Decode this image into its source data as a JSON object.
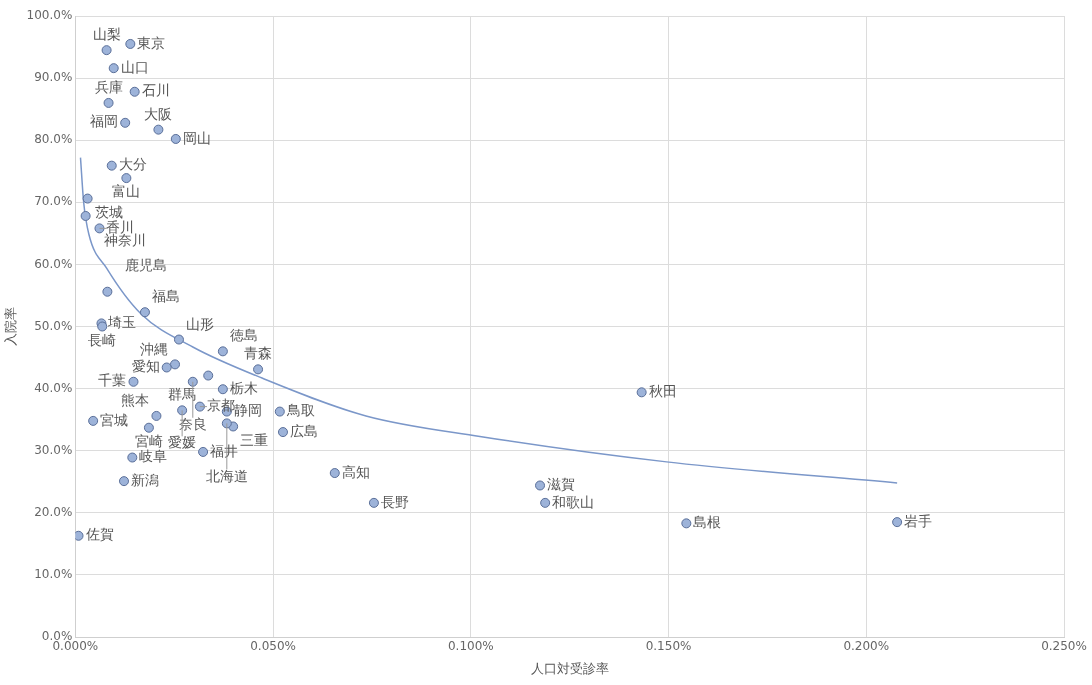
{
  "chart_data": {
    "type": "scatter",
    "xlabel": "人口対受診率",
    "ylabel": "入院率",
    "xlim": [
      0,
      0.25
    ],
    "xticks": [
      {
        "value": 0,
        "label": "0.000%"
      },
      {
        "value": 0.05,
        "label": "0.050%"
      },
      {
        "value": 0.1,
        "label": "0.100%"
      },
      {
        "value": 0.15,
        "label": "0.150%"
      },
      {
        "value": 0.2,
        "label": "0.200%"
      },
      {
        "value": 0.25,
        "label": "0.250%"
      }
    ],
    "ylim": [
      0,
      100
    ],
    "yticks": [
      {
        "value": 0,
        "label": "0.0%"
      },
      {
        "value": 10,
        "label": "10.0%"
      },
      {
        "value": 20,
        "label": "20.0%"
      },
      {
        "value": 30,
        "label": "30.0%"
      },
      {
        "value": 40,
        "label": "40.0%"
      },
      {
        "value": 50,
        "label": "50.0%"
      },
      {
        "value": 60,
        "label": "60.0%"
      },
      {
        "value": 70,
        "label": "70.0%"
      },
      {
        "value": 80,
        "label": "80.0%"
      },
      {
        "value": 90,
        "label": "90.0%"
      },
      {
        "value": 100,
        "label": "100.0%"
      }
    ],
    "grid": true,
    "legend": false,
    "series": [
      {
        "marker": "circle",
        "color": "#9db3d9",
        "x": [
          0.0139,
          0.0079,
          0.0097,
          0.015,
          0.0084,
          0.0126,
          0.021,
          0.0254,
          0.0092,
          0.0129,
          0.0031,
          0.0026,
          0.0061,
          0.0081,
          0.0176,
          0.0066,
          0.0068,
          0.0262,
          0.0252,
          0.0373,
          0.0231,
          0.0462,
          0.0336,
          0.0147,
          0.0297,
          0.0373,
          0.0383,
          0.0045,
          0.0205,
          0.0186,
          0.027,
          0.0315,
          0.0323,
          0.0399,
          0.0383,
          0.0517,
          0.0525,
          0.0656,
          0.0144,
          0.0123,
          0.0755,
          0.1175,
          0.1188,
          0.1432,
          0.1545,
          0.2078,
          0.0008
        ],
        "values": [
          95.5,
          94.5,
          91.6,
          87.8,
          86.0,
          82.8,
          81.7,
          80.2,
          75.9,
          73.9,
          70.6,
          67.8,
          65.8,
          55.6,
          52.3,
          50.5,
          50.0,
          47.9,
          43.9,
          46.0,
          43.4,
          43.1,
          42.1,
          41.1,
          41.1,
          39.9,
          36.3,
          34.8,
          35.6,
          33.7,
          36.5,
          37.1,
          29.8,
          33.9,
          34.4,
          36.3,
          33.0,
          26.4,
          28.9,
          25.1,
          21.6,
          24.4,
          21.6,
          39.4,
          18.3,
          18.5,
          16.3
        ]
      },
      {
        "type": "line",
        "color": "#7b97c9",
        "x": [
          0.0013,
          0.0021,
          0.0034,
          0.0079,
          0.0165,
          0.0297,
          0.0472,
          0.0735,
          0.1023,
          0.1495,
          0.2078
        ],
        "values": [
          77.2,
          70.0,
          64.9,
          59.4,
          52.1,
          46.7,
          41.7,
          35.6,
          32.3,
          28.2,
          24.8
        ]
      }
    ],
    "annotations": [
      {
        "text": "東京",
        "x": 0.0139,
        "y": 95.5
      },
      {
        "text": "山梨",
        "x": 0.0079,
        "y": 94.5
      },
      {
        "text": "山口",
        "x": 0.0097,
        "y": 91.6
      },
      {
        "text": "石川",
        "x": 0.015,
        "y": 87.8
      },
      {
        "text": "兵庫",
        "x": 0.0084,
        "y": 86.0
      },
      {
        "text": "福岡",
        "x": 0.0126,
        "y": 82.8
      },
      {
        "text": "大阪",
        "x": 0.021,
        "y": 81.7
      },
      {
        "text": "岡山",
        "x": 0.0254,
        "y": 80.2
      },
      {
        "text": "大分",
        "x": 0.0092,
        "y": 75.9
      },
      {
        "text": "富山",
        "x": 0.0129,
        "y": 73.9
      },
      {
        "text": "茨城",
        "x": 0.0031,
        "y": 70.6
      },
      {
        "text": "神奈川",
        "x": 0.0026,
        "y": 67.8
      },
      {
        "text": "香川",
        "x": 0.0061,
        "y": 65.8
      },
      {
        "text": "鹿児島",
        "x": 0.0081,
        "y": 55.6
      },
      {
        "text": "福島",
        "x": 0.0176,
        "y": 52.3
      },
      {
        "text": "埼玉",
        "x": 0.0066,
        "y": 50.5
      },
      {
        "text": "長崎",
        "x": 0.0068,
        "y": 50.0
      },
      {
        "text": "山形",
        "x": 0.0262,
        "y": 47.9
      },
      {
        "text": "沖縄",
        "x": 0.0252,
        "y": 43.9
      },
      {
        "text": "徳島",
        "x": 0.0373,
        "y": 46.0
      },
      {
        "text": "愛知",
        "x": 0.0231,
        "y": 43.4
      },
      {
        "text": "青森",
        "x": 0.0462,
        "y": 43.1
      },
      {
        "text": "群馬",
        "x": 0.0336,
        "y": 42.1
      },
      {
        "text": "千葉",
        "x": 0.0147,
        "y": 41.1
      },
      {
        "text": "奈良",
        "x": 0.0297,
        "y": 41.1
      },
      {
        "text": "栃木",
        "x": 0.0373,
        "y": 39.9
      },
      {
        "text": "静岡",
        "x": 0.0383,
        "y": 36.3
      },
      {
        "text": "宮城",
        "x": 0.0045,
        "y": 34.8
      },
      {
        "text": "熊本",
        "x": 0.0205,
        "y": 35.6
      },
      {
        "text": "宮崎",
        "x": 0.0186,
        "y": 33.7
      },
      {
        "text": "愛媛",
        "x": 0.027,
        "y": 36.5
      },
      {
        "text": "京都",
        "x": 0.0315,
        "y": 37.1
      },
      {
        "text": "福井",
        "x": 0.0323,
        "y": 29.8
      },
      {
        "text": "三重",
        "x": 0.0399,
        "y": 33.9
      },
      {
        "text": "北海道",
        "x": 0.0383,
        "y": 34.4
      },
      {
        "text": "鳥取",
        "x": 0.0517,
        "y": 36.3
      },
      {
        "text": "広島",
        "x": 0.0525,
        "y": 33.0
      },
      {
        "text": "高知",
        "x": 0.0656,
        "y": 26.4
      },
      {
        "text": "岐阜",
        "x": 0.0144,
        "y": 28.9
      },
      {
        "text": "新潟",
        "x": 0.0123,
        "y": 25.1
      },
      {
        "text": "長野",
        "x": 0.0755,
        "y": 21.6
      },
      {
        "text": "滋賀",
        "x": 0.1175,
        "y": 24.4
      },
      {
        "text": "和歌山",
        "x": 0.1188,
        "y": 21.6
      },
      {
        "text": "秋田",
        "x": 0.1432,
        "y": 39.4
      },
      {
        "text": "島根",
        "x": 0.1545,
        "y": 18.3
      },
      {
        "text": "岩手",
        "x": 0.2078,
        "y": 18.5
      },
      {
        "text": "佐賀",
        "x": 0.0008,
        "y": 16.3
      }
    ]
  }
}
